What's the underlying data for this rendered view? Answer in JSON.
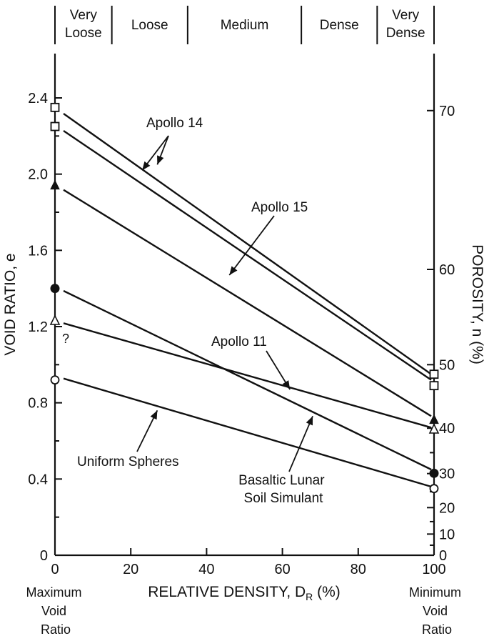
{
  "chart_data": {
    "type": "line",
    "title": "",
    "xlabel_main": "RELATIVE DENSITY, D",
    "xlabel_sub": "R",
    "xlabel_unit": " (%)",
    "ylabel": "VOID RATIO, e",
    "y2label": "POROSITY, n (%)",
    "xlim": [
      0,
      100
    ],
    "ylim": [
      0,
      2.4
    ],
    "x_ticks": [
      "0",
      "20",
      "40",
      "60",
      "80",
      "100"
    ],
    "y_ticks": [
      "0",
      "0.4",
      "0.8",
      "1.2",
      "1.6",
      "2.0",
      "2.4"
    ],
    "y2_ticks": [
      "0",
      "10",
      "20",
      "30",
      "40",
      "50",
      "60",
      "70"
    ],
    "y2_ticks_minor": [
      "5",
      "15",
      "25",
      "35"
    ],
    "density_bands": [
      {
        "label_lines": [
          "Very",
          "Loose"
        ],
        "x0": 0,
        "x1": 15
      },
      {
        "label_lines": [
          "Loose"
        ],
        "x0": 15,
        "x1": 35
      },
      {
        "label_lines": [
          "Medium"
        ],
        "x0": 35,
        "x1": 65
      },
      {
        "label_lines": [
          "Dense"
        ],
        "x0": 65,
        "x1": 85
      },
      {
        "label_lines": [
          "Very",
          "Dense"
        ],
        "x0": 85,
        "x1": 100
      }
    ],
    "left_note_lines": [
      "Maximum",
      "Void",
      "Ratio"
    ],
    "right_note_lines": [
      "Minimum",
      "Void",
      "Ratio"
    ],
    "question_mark": "?",
    "series": [
      {
        "group": "Apollo 14",
        "x": [
          0,
          100
        ],
        "y": [
          2.31,
          0.95
        ],
        "marker": "open-square",
        "marker_y": [
          2.35,
          0.95
        ]
      },
      {
        "group": "Apollo 14",
        "x": [
          0,
          100
        ],
        "y": [
          2.22,
          0.92
        ],
        "marker": "open-square",
        "marker_y": [
          2.25,
          0.89
        ]
      },
      {
        "name": "Apollo 15",
        "x": [
          0,
          100
        ],
        "y": [
          1.91,
          0.73
        ],
        "marker": "filled-triangle",
        "marker_y": [
          1.94,
          0.71
        ]
      },
      {
        "name": "Apollo 11",
        "x": [
          0,
          100
        ],
        "y": [
          1.21,
          0.67
        ],
        "marker": "open-triangle",
        "marker_y": [
          1.23,
          0.66
        ]
      },
      {
        "name": "Basaltic Lunar Soil Simulant",
        "x": [
          0,
          100
        ],
        "y": [
          1.38,
          0.45
        ],
        "marker": "filled-circle",
        "marker_y": [
          1.4,
          0.43
        ]
      },
      {
        "name": "Uniform Spheres",
        "x": [
          0,
          100
        ],
        "y": [
          0.92,
          0.36
        ],
        "marker": "open-circle",
        "marker_y": [
          0.92,
          0.35
        ]
      }
    ],
    "annotations": [
      {
        "label_lines": [
          "Apollo 14"
        ],
        "arrows_to": [
          [
            27,
            2.05
          ],
          [
            23,
            2.02
          ]
        ]
      },
      {
        "label_lines": [
          "Apollo 15"
        ],
        "arrows_to": [
          [
            46,
            1.47
          ]
        ]
      },
      {
        "label_lines": [
          "Apollo 11"
        ],
        "arrows_to": [
          [
            62,
            0.87
          ]
        ]
      },
      {
        "label_lines": [
          "Uniform Spheres"
        ],
        "arrows_to": [
          [
            27,
            0.76
          ]
        ]
      },
      {
        "label_lines": [
          "Basaltic Lunar",
          "Soil Simulant"
        ],
        "arrows_to": [
          [
            68,
            0.73
          ]
        ]
      }
    ]
  }
}
